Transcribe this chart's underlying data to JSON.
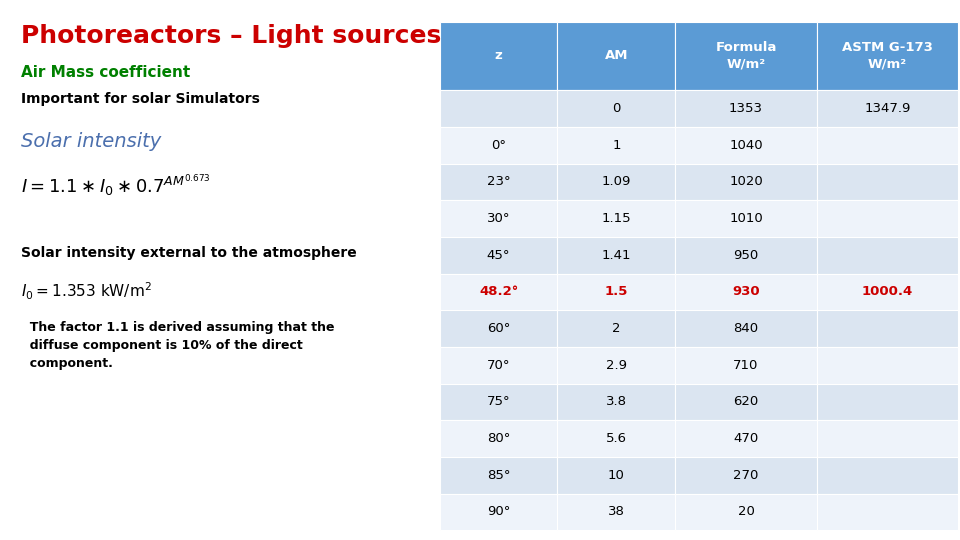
{
  "title": "Photoreactors – Light sources",
  "title_color": "#cc0000",
  "subtitle": "Air Mass coefficient",
  "subtitle_color": "#008000",
  "intro_text": "Important for solar Simulators",
  "solar_intensity_label": "Solar intensity",
  "solar_intensity_color": "#4b6fad",
  "external_label": "Solar intensity external to the atmosphere",
  "factor_text": "  The factor 1.1 is derived assuming that the\n  diffuse component is 10% of the direct\n  component.",
  "table_header_bg": "#5b9bd5",
  "table_header_text": "#ffffff",
  "table_row_even_bg": "#dbe5f1",
  "table_row_odd_bg": "#eef3fa",
  "table_highlight_row": 5,
  "table_highlight_color": "#cc0000",
  "col_headers": [
    "z",
    "AM",
    "Formula\nW/m²",
    "ASTM G-173\nW/m²"
  ],
  "rows": [
    [
      "",
      "0",
      "1353",
      "1347.9"
    ],
    [
      "0°",
      "1",
      "1040",
      ""
    ],
    [
      "23°",
      "1.09",
      "1020",
      ""
    ],
    [
      "30°",
      "1.15",
      "1010",
      ""
    ],
    [
      "45°",
      "1.41",
      "950",
      ""
    ],
    [
      "48.2°",
      "1.5",
      "930",
      "1000.4"
    ],
    [
      "60°",
      "2",
      "840",
      ""
    ],
    [
      "70°",
      "2.9",
      "710",
      ""
    ],
    [
      "75°",
      "3.8",
      "620",
      ""
    ],
    [
      "80°",
      "5.6",
      "470",
      ""
    ],
    [
      "85°",
      "10",
      "270",
      ""
    ],
    [
      "90°",
      "38",
      "20",
      ""
    ]
  ],
  "bg_color": "#ffffff"
}
